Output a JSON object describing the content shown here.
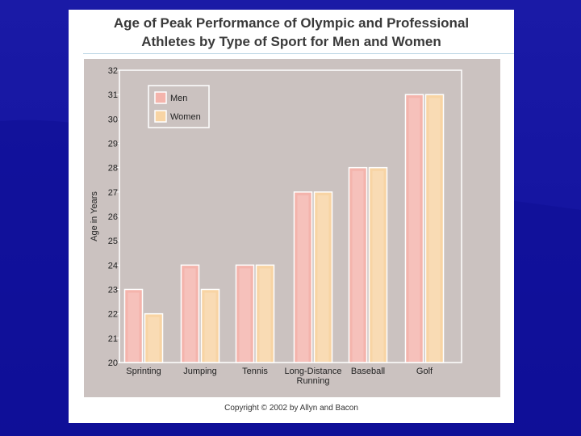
{
  "slide": {
    "title_line1": "Age of Peak Performance of Olympic and Professional",
    "title_line2": "Athletes by Type of Sport for Men and Women",
    "copyright": "Copyright © 2002 by Allyn and Bacon"
  },
  "colors": {
    "background": "#1414a0",
    "plot_area": "#cbc2c0",
    "men_bar": "#f4b4ac",
    "women_bar": "#f8d4a4"
  },
  "chart_data": {
    "type": "bar",
    "title": "Age of Peak Performance of Olympic and Professional Athletes by Type of Sport for Men and Women",
    "xlabel": "",
    "ylabel": "Age in Years",
    "ylim": [
      20,
      32
    ],
    "yticks": [
      20,
      21,
      22,
      23,
      24,
      25,
      26,
      27,
      28,
      29,
      30,
      31,
      32
    ],
    "categories": [
      [
        "Sprinting"
      ],
      [
        "Jumping"
      ],
      [
        "Tennis"
      ],
      [
        "Long-Distance",
        "Running"
      ],
      [
        "Baseball"
      ],
      [
        "Golf"
      ]
    ],
    "series": [
      {
        "name": "Men",
        "values": [
          23,
          24,
          24,
          27,
          28,
          31
        ]
      },
      {
        "name": "Women",
        "values": [
          22,
          23,
          24,
          27,
          28,
          31
        ]
      }
    ],
    "legend": "top-left",
    "grid": false
  }
}
